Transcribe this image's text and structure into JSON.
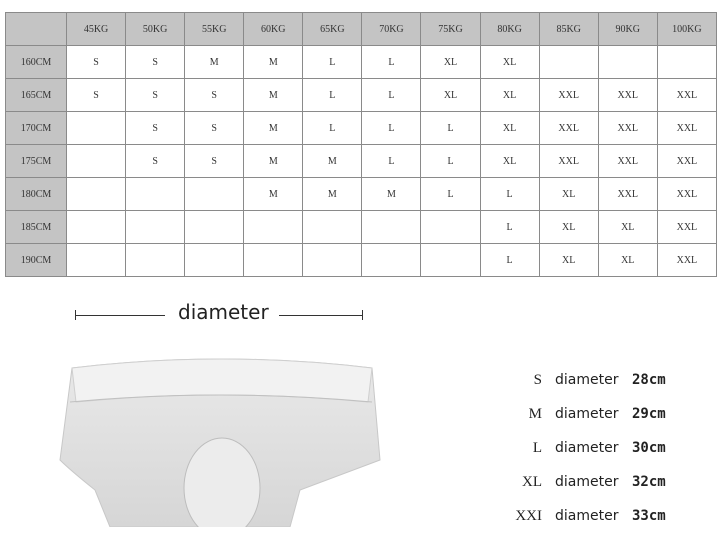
{
  "size_chart": {
    "weights": [
      "45KG",
      "50KG",
      "55KG",
      "60KG",
      "65KG",
      "70KG",
      "75KG",
      "80KG",
      "85KG",
      "90KG",
      "100KG"
    ],
    "rows": [
      {
        "height": "160CM",
        "sizes": [
          "S",
          "S",
          "M",
          "M",
          "L",
          "L",
          "XL",
          "XL",
          "",
          "",
          ""
        ]
      },
      {
        "height": "165CM",
        "sizes": [
          "S",
          "S",
          "S",
          "M",
          "L",
          "L",
          "XL",
          "XL",
          "XXL",
          "XXL",
          "XXL"
        ]
      },
      {
        "height": "170CM",
        "sizes": [
          "",
          "S",
          "S",
          "M",
          "L",
          "L",
          "L",
          "XL",
          "XXL",
          "XXL",
          "XXL"
        ]
      },
      {
        "height": "175CM",
        "sizes": [
          "",
          "S",
          "S",
          "M",
          "M",
          "L",
          "L",
          "XL",
          "XXL",
          "XXL",
          "XXL"
        ]
      },
      {
        "height": "180CM",
        "sizes": [
          "",
          "",
          "",
          "M",
          "M",
          "M",
          "L",
          "L",
          "XL",
          "XXL",
          "XXL"
        ]
      },
      {
        "height": "185CM",
        "sizes": [
          "",
          "",
          "",
          "",
          "",
          "",
          "",
          "L",
          "XL",
          "XL",
          "XXL"
        ]
      },
      {
        "height": "190CM",
        "sizes": [
          "",
          "",
          "",
          "",
          "",
          "",
          "",
          "L",
          "XL",
          "XL",
          "XXL"
        ]
      }
    ]
  },
  "diameter_label": "diameter",
  "size_diameters": [
    {
      "size": "S",
      "label": "diameter",
      "value": "28cm"
    },
    {
      "size": "M",
      "label": "diameter",
      "value": "29cm"
    },
    {
      "size": "L",
      "label": "diameter",
      "value": "30cm"
    },
    {
      "size": "XL",
      "label": "diameter",
      "value": "32cm"
    },
    {
      "size": "XXI",
      "label": "diameter",
      "value": "33cm"
    }
  ]
}
